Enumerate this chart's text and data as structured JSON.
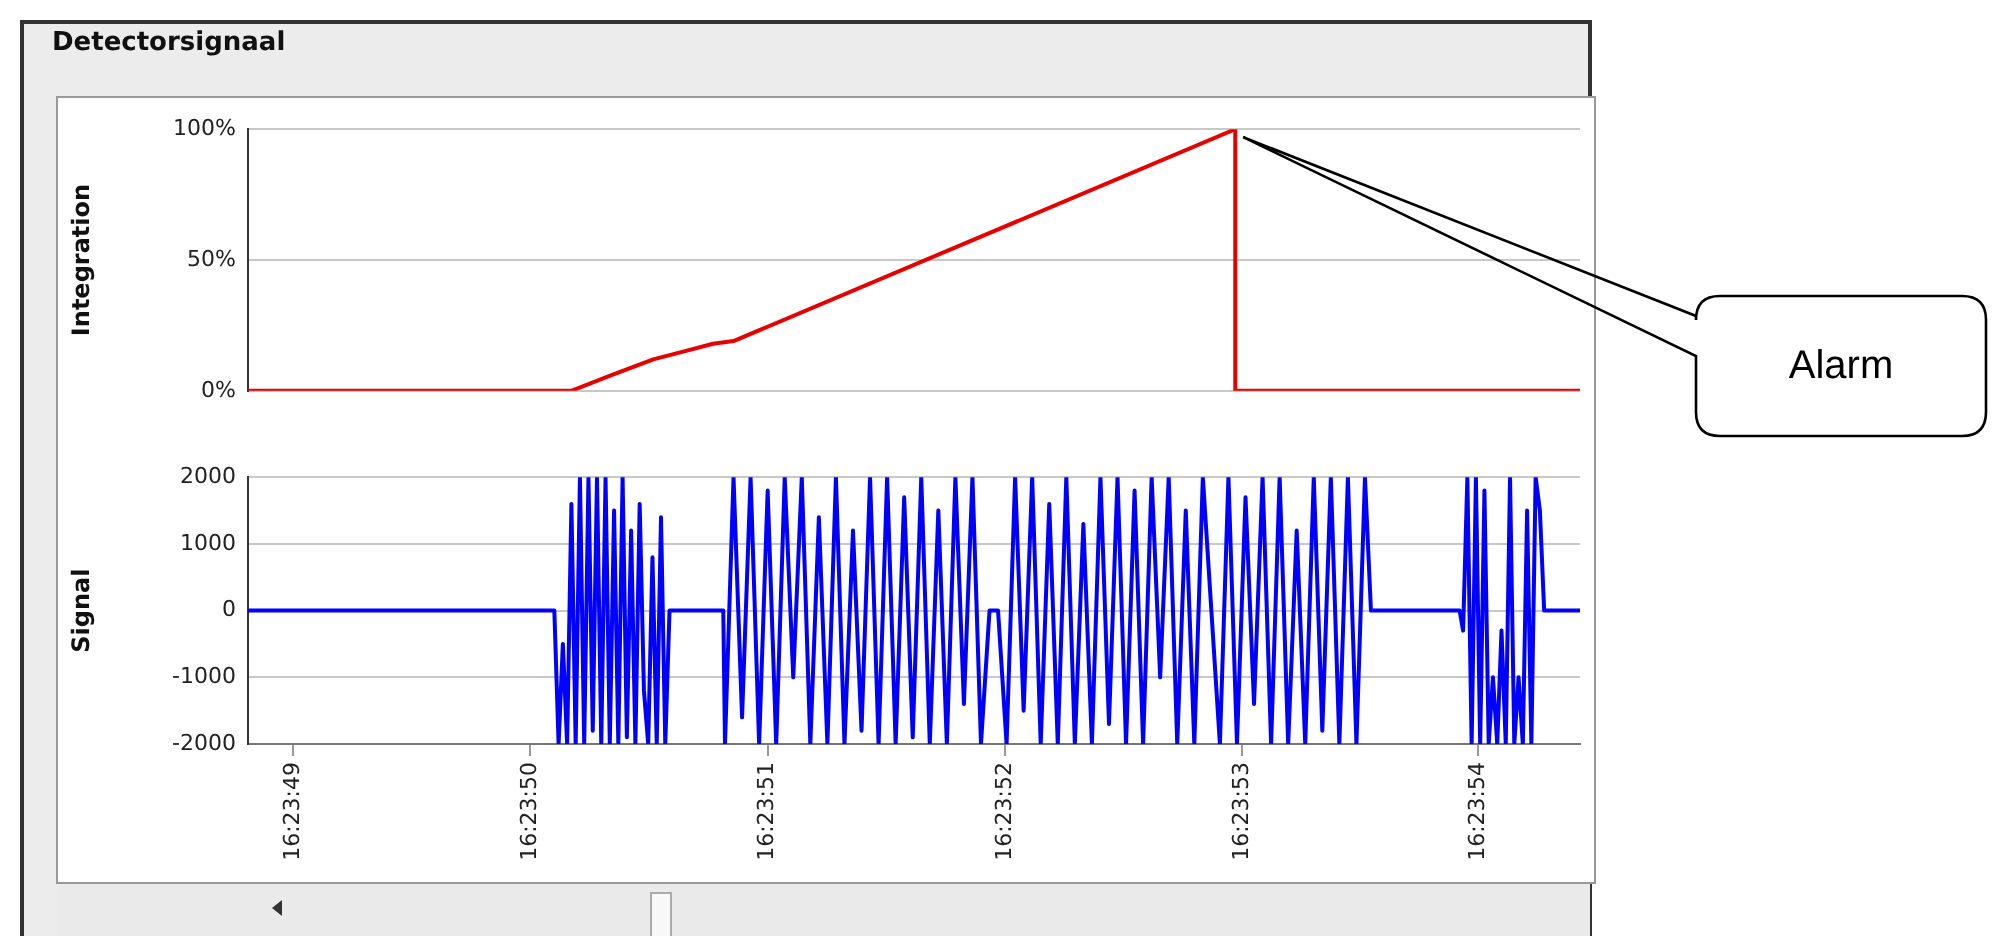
{
  "chart_data": [
    {
      "type": "line",
      "title": "Detectorsignaal",
      "ylabel": "Integration",
      "x": [
        16.396891,
        16.39727,
        16.397317,
        16.397366,
        16.397401,
        16.397436,
        16.39746,
        16.398048,
        16.398048,
        16.398452
      ],
      "series": [
        {
          "color": "#e60000",
          "values": [
            0,
            0,
            6,
            12,
            15,
            18,
            19,
            100,
            0,
            0
          ]
        }
      ],
      "xlim": [
        16.396891,
        16.398452
      ],
      "ylim": [
        0,
        100
      ],
      "yticks": [
        {
          "value": 0,
          "label": "0%"
        },
        {
          "value": 50,
          "label": "50%"
        },
        {
          "value": 100,
          "label": "100%"
        }
      ],
      "grid": "y",
      "tick_labels": "y",
      "marker": "none",
      "annotations": [
        "Alarm"
      ]
    },
    {
      "type": "line",
      "ylabel": "Signal",
      "x": [
        16.396891,
        16.39725,
        16.397255,
        16.39726,
        16.397265,
        16.39727,
        16.397275,
        16.39728,
        16.397285,
        16.39729,
        16.397295,
        16.3973,
        16.397305,
        16.39731,
        16.397315,
        16.39732,
        16.397325,
        16.39733,
        16.397335,
        16.39734,
        16.397345,
        16.39735,
        16.397355,
        16.39736,
        16.397365,
        16.39737,
        16.397375,
        16.39738,
        16.397385,
        16.397448,
        16.39745,
        16.39746,
        16.39747,
        16.39748,
        16.39749,
        16.3975,
        16.39751,
        16.39752,
        16.39753,
        16.39754,
        16.39755,
        16.39756,
        16.39757,
        16.39758,
        16.39759,
        16.3976,
        16.39761,
        16.39762,
        16.39763,
        16.39764,
        16.39765,
        16.39766,
        16.39767,
        16.39768,
        16.39769,
        16.3977,
        16.39771,
        16.39772,
        16.39773,
        16.39774,
        16.39775,
        16.39776,
        16.39777,
        16.39778,
        16.39779,
        16.3978,
        16.39781,
        16.39782,
        16.39783,
        16.39784,
        16.39785,
        16.39786,
        16.39787,
        16.39788,
        16.39789,
        16.3979,
        16.39791,
        16.39792,
        16.39793,
        16.39794,
        16.39795,
        16.39796,
        16.39797,
        16.39798,
        16.39799,
        16.398,
        16.39801,
        16.39802,
        16.39803,
        16.39804,
        16.39805,
        16.39806,
        16.39807,
        16.39808,
        16.39809,
        16.3981,
        16.39811,
        16.39812,
        16.39813,
        16.39814,
        16.39815,
        16.39816,
        16.39817,
        16.39818,
        16.39819,
        16.3982,
        16.398207,
        16.398311,
        16.398315,
        16.39832,
        16.398325,
        16.39833,
        16.398335,
        16.39834,
        16.398345,
        16.39835,
        16.398355,
        16.39836,
        16.398365,
        16.39837,
        16.398375,
        16.39838,
        16.398385,
        16.39839,
        16.398395,
        16.3984,
        16.398405,
        16.39841,
        16.398452
      ],
      "values": [
        0,
        0,
        -2000,
        -500,
        -2000,
        1600,
        -2000,
        2000,
        -2000,
        2000,
        -1800,
        2000,
        -2000,
        2000,
        -2000,
        1500,
        -2000,
        2000,
        -1900,
        1200,
        -2000,
        1600,
        -1200,
        -2000,
        800,
        -2000,
        1400,
        -2000,
        0,
        0,
        -2000,
        2000,
        -1600,
        2000,
        -2000,
        1800,
        -2000,
        2000,
        -1000,
        2000,
        -2000,
        1400,
        -2000,
        2000,
        -2000,
        1200,
        -1800,
        2000,
        -2000,
        2000,
        -2000,
        1700,
        -1900,
        2000,
        -2000,
        1500,
        -2000,
        2000,
        -1400,
        2000,
        -2000,
        0,
        0,
        -2000,
        2000,
        -1500,
        2000,
        -2000,
        1600,
        -2000,
        2000,
        -2000,
        1300,
        -2000,
        2000,
        -1700,
        2000,
        -2000,
        1800,
        -2000,
        2000,
        -1000,
        2000,
        -2000,
        1500,
        -2000,
        2000,
        0,
        -2000,
        2000,
        -2000,
        1700,
        -1400,
        2000,
        -2000,
        2000,
        -2000,
        1200,
        -2000,
        2000,
        -1800,
        2000,
        -2000,
        2000,
        -2000,
        2000,
        0,
        0,
        -300,
        2000,
        -2000,
        2000,
        -2000,
        1800,
        -2000,
        -1000,
        -2000,
        -300,
        -2000,
        2000,
        -2000,
        -1000,
        -2000,
        1500,
        -2000,
        2000,
        1500,
        0,
        0
      ],
      "color": "#0000ff",
      "xlim": [
        16.396891,
        16.398452
      ],
      "xticks": [
        {
          "value": 16.396944,
          "label": "16:23:49"
        },
        {
          "value": 16.397222,
          "label": "16:23:50"
        },
        {
          "value": 16.3975,
          "label": "16:23:51"
        },
        {
          "value": 16.397778,
          "label": "16:23:52"
        },
        {
          "value": 16.398056,
          "label": "16:23:53"
        },
        {
          "value": 16.398333,
          "label": "16:23:54"
        }
      ],
      "ylim": [
        -2000,
        2000
      ],
      "yticks": [
        -2000,
        -1000,
        0,
        1000,
        2000
      ],
      "grid": "y",
      "marker": "none"
    }
  ]
}
